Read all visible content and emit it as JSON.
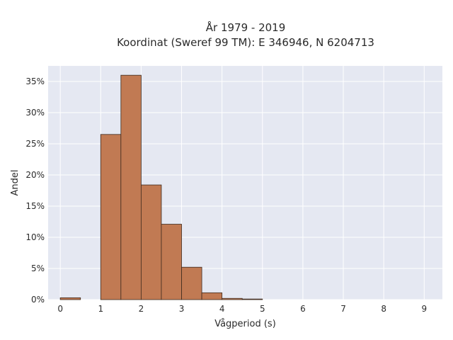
{
  "chart_data": {
    "type": "bar",
    "title": "År 1979 - 2019",
    "subtitle": "Koordinat (Sweref 99 TM): E 346946, N 6204713",
    "xlabel": "Vågperiod (s)",
    "ylabel": "Andel",
    "xlim": [
      -0.3,
      9.45
    ],
    "ylim": [
      0,
      37.5
    ],
    "x_ticks": [
      0,
      1,
      2,
      3,
      4,
      5,
      6,
      7,
      8,
      9
    ],
    "y_ticks": [
      0,
      5,
      10,
      15,
      20,
      25,
      30,
      35
    ],
    "y_tick_labels": [
      "0%",
      "5%",
      "10%",
      "15%",
      "20%",
      "25%",
      "30%",
      "35%"
    ],
    "bin_width": 0.5,
    "bins": [
      {
        "x0": 0.0,
        "value": 0.3
      },
      {
        "x0": 0.5,
        "value": 0.0
      },
      {
        "x0": 1.0,
        "value": 26.5
      },
      {
        "x0": 1.5,
        "value": 36.0
      },
      {
        "x0": 2.0,
        "value": 18.4
      },
      {
        "x0": 2.5,
        "value": 12.1
      },
      {
        "x0": 3.0,
        "value": 5.2
      },
      {
        "x0": 3.5,
        "value": 1.1
      },
      {
        "x0": 4.0,
        "value": 0.2
      },
      {
        "x0": 4.5,
        "value": 0.1
      }
    ],
    "bar_color": "#c17a53",
    "bar_edge_color": "#3d2a1e",
    "plot_bg": "#e5e8f2",
    "grid": true,
    "grid_color": "#ffffff"
  }
}
